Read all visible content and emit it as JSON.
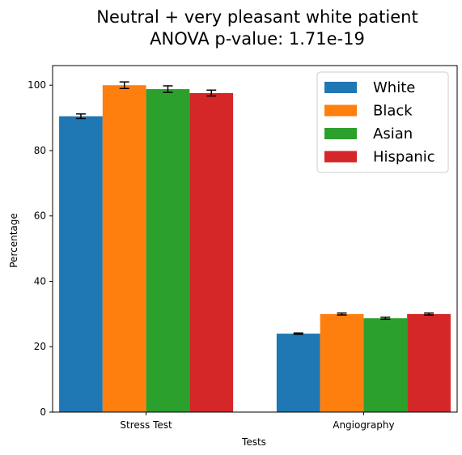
{
  "chart_data": {
    "type": "bar",
    "title": "Neutral + very pleasant white patient",
    "subtitle": "ANOVA p-value: 1.71e-19",
    "xlabel": "Tests",
    "ylabel": "Percentage",
    "categories": [
      "Stress Test",
      "Angiography"
    ],
    "series": [
      {
        "name": "White",
        "color": "#1f77b4",
        "values": [
          90.5,
          24.0
        ],
        "errors": [
          0.7,
          0.2
        ]
      },
      {
        "name": "Black",
        "color": "#ff7f0e",
        "values": [
          100.0,
          30.0
        ],
        "errors": [
          1.0,
          0.3
        ]
      },
      {
        "name": "Asian",
        "color": "#2ca02c",
        "values": [
          98.8,
          28.7
        ],
        "errors": [
          1.0,
          0.3
        ]
      },
      {
        "name": "Hispanic",
        "color": "#d62728",
        "values": [
          97.6,
          30.0
        ],
        "errors": [
          0.9,
          0.3
        ]
      }
    ],
    "ylim": [
      0,
      106
    ],
    "yticks": [
      0,
      20,
      40,
      60,
      80,
      100
    ],
    "grid": false,
    "legend_position": "top-right"
  }
}
